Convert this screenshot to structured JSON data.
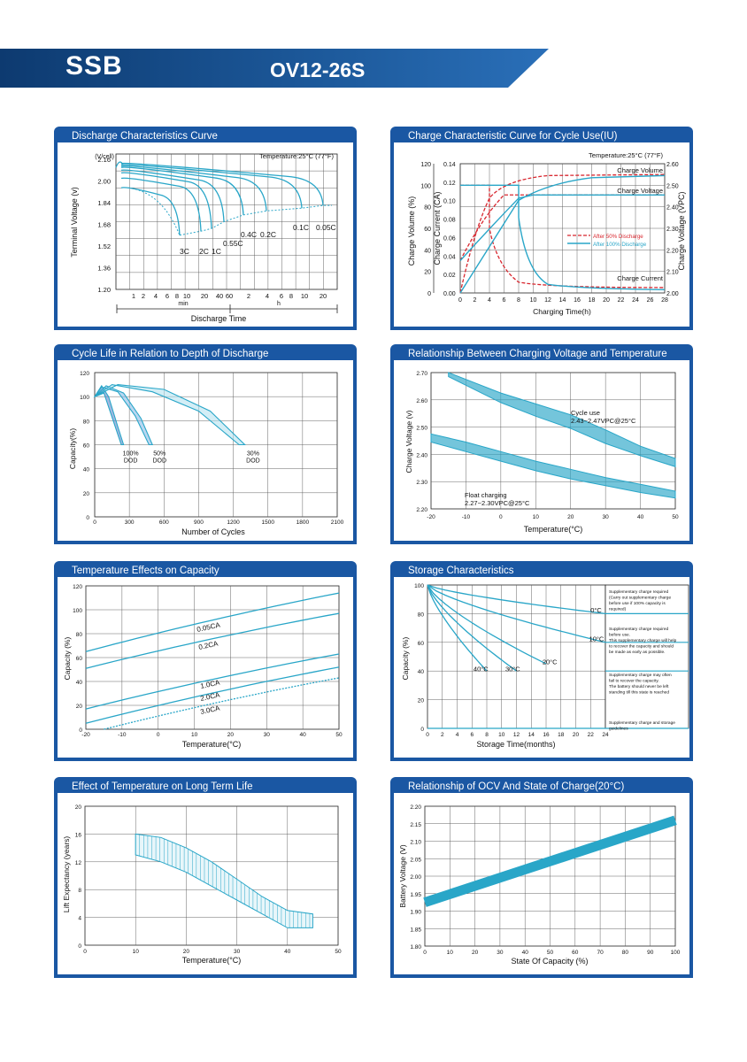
{
  "header": {
    "brand": "SSB",
    "model": "OV12-26S",
    "colors": {
      "banner": "#0f3f7a",
      "banner_light": "#2a6fb8",
      "panel": "#1a57a3",
      "curve": "#29a6c8",
      "red": "#d8262e"
    }
  },
  "panels": [
    {
      "title": "Discharge Characteristics Curve",
      "chart_data": {
        "type": "line",
        "title": "Discharge Characteristics Curve",
        "annotation": "Temperature:25°C (77°F)",
        "y_unit_label": "(V/cell)",
        "ylabel": "Terminal Voltage (v)",
        "xlabel": "Discharge Time",
        "ylim": [
          1.2,
          2.2
        ],
        "yticks": [
          "2.16",
          "2.00",
          "1.84",
          "1.68",
          "1.52",
          "1.36",
          "1.20"
        ],
        "x_ticks_min": [
          "1",
          "2",
          "4",
          "6",
          "8",
          "10",
          "20",
          "40",
          "60"
        ],
        "x_ticks_h": [
          "2",
          "4",
          "6",
          "8",
          "10",
          "20"
        ],
        "x_unit_min": "min",
        "x_unit_h": "h",
        "series": [
          {
            "name": "3C",
            "end_time": "6min",
            "end_v": 1.6
          },
          {
            "name": "2C",
            "end_time": "12min",
            "end_v": 1.63
          },
          {
            "name": "1C",
            "end_time": "30min",
            "end_v": 1.65
          },
          {
            "name": "0.55C",
            "end_time": "60min",
            "end_v": 1.7
          },
          {
            "name": "0.4C",
            "end_time": "2h",
            "end_v": 1.75
          },
          {
            "name": "0.2C",
            "end_time": "5h",
            "end_v": 1.78
          },
          {
            "name": "0.1C",
            "end_time": "10h",
            "end_v": 1.8
          },
          {
            "name": "0.05C",
            "end_time": "20h",
            "end_v": 1.82
          }
        ],
        "labels": [
          "3C",
          "2C",
          "1C",
          "0.55C",
          "0.4C",
          "0.2C",
          "0.1C",
          "0.05C"
        ]
      }
    },
    {
      "title": "Charge Characteristic Curve for Cycle Use(IU)",
      "chart_data": {
        "type": "line",
        "title": "Charge Characteristic Curve for Cycle Use(IU)",
        "annotation": "Temperature:25°C (77°F)",
        "ylabel_volume": "Charge Volume (%)",
        "ylabel_current": "Charge Current (CA)",
        "ylabel_voltage": "Charge Voltage (VPC)",
        "xlabel": "Charging Time(h)",
        "x": [
          0,
          2,
          4,
          6,
          8,
          10,
          12,
          14,
          16,
          18,
          20,
          22,
          24,
          26,
          28
        ],
        "volume_ticks": [
          "0",
          "20",
          "40",
          "60",
          "80",
          "100",
          "120"
        ],
        "current_ticks": [
          "0.00",
          "0.02",
          "0.04",
          "0.06",
          "0.08",
          "0.10",
          "0.12",
          "0.14"
        ],
        "voltage_ticks": [
          "2.00",
          "2.10",
          "2.20",
          "2.30",
          "2.40",
          "2.50",
          "2.60"
        ],
        "curve_labels": [
          "Charge Volume",
          "Charge Voltage",
          "Charge Current"
        ],
        "legend": [
          "After 50% Discharge",
          "After 100% Discharge"
        ]
      }
    },
    {
      "title": "Cycle Life in Relation to Depth of Discharge",
      "chart_data": {
        "type": "area",
        "title": "Cycle Life in Relation to Depth of Discharge",
        "ylabel": "Capacity(%)",
        "xlabel": "Number of Cycles",
        "xticks": [
          "0",
          "300",
          "600",
          "900",
          "1200",
          "1500",
          "1800",
          "2100"
        ],
        "yticks": [
          "0",
          "20",
          "40",
          "60",
          "80",
          "100",
          "120"
        ],
        "series": [
          {
            "name": "100% DOD",
            "end_cycles": 250,
            "end_capacity": 60
          },
          {
            "name": "50% DOD",
            "end_cycles": 500,
            "end_capacity": 60
          },
          {
            "name": "30% DOD",
            "end_cycles": 1300,
            "end_capacity": 60
          }
        ],
        "labels": [
          [
            "100%",
            "DOD"
          ],
          [
            "50%",
            "DOD"
          ],
          [
            "30%",
            "DOD"
          ]
        ]
      }
    },
    {
      "title": "Relationship Between Charging Voltage and Temperature",
      "chart_data": {
        "type": "area",
        "title": "Relationship Between Charging Voltage and Temperature",
        "ylabel": "Charge Voltage (v)",
        "xlabel": "Temperature(°C)",
        "xticks": [
          "-20",
          "-10",
          "0",
          "10",
          "20",
          "30",
          "40",
          "50"
        ],
        "yticks": [
          "2.20",
          "2.30",
          "2.40",
          "2.50",
          "2.60",
          "2.70"
        ],
        "bands": [
          {
            "name": "Cycle use",
            "label2": "2.43~2.47VPC@25°C"
          },
          {
            "name": "Float charging",
            "label2": "2.27~2.30VPC@25°C"
          }
        ],
        "band_labels": [
          "Cycle use",
          "2.43~2.47VPC@25°C",
          "Float charging",
          "2.27~2.30VPC@25°C"
        ]
      }
    },
    {
      "title": "Temperature Effects on Capacity",
      "chart_data": {
        "type": "line",
        "title": "Temperature Effects on Capacity",
        "ylabel": "Capacity (%)",
        "xlabel": "Temperature(°C)",
        "xticks": [
          "-20",
          "-10",
          "0",
          "10",
          "20",
          "30",
          "40",
          "50"
        ],
        "yticks": [
          "0",
          "20",
          "40",
          "60",
          "80",
          "100",
          "120"
        ],
        "series": [
          {
            "name": "0.05CA",
            "x": [
              -20,
              50
            ],
            "y": [
              65,
              114
            ]
          },
          {
            "name": "0.2CA",
            "x": [
              -20,
              50
            ],
            "y": [
              51,
              97
            ]
          },
          {
            "name": "1.0CA",
            "x": [
              -20,
              50
            ],
            "y": [
              17,
              63
            ]
          },
          {
            "name": "2.0CA",
            "x": [
              -20,
              50
            ],
            "y": [
              5,
              52
            ]
          },
          {
            "name": "3.0CA",
            "x": [
              -15,
              50
            ],
            "y": [
              0,
              43
            ]
          }
        ],
        "labels": [
          "0.05CA",
          "0.2CA",
          "1.0CA",
          "2.0CA",
          "3.0CA"
        ]
      }
    },
    {
      "title": "Storage Characteristics",
      "chart_data": {
        "type": "line",
        "title": "Storage Characteristics",
        "ylabel": "Capacity (%)",
        "xlabel": "Storage Time(months)",
        "xticks": [
          "0",
          "2",
          "4",
          "6",
          "8",
          "10",
          "12",
          "14",
          "16",
          "18",
          "20",
          "22",
          "24"
        ],
        "yticks": [
          "0",
          "20",
          "40",
          "60",
          "80",
          "100"
        ],
        "series": [
          {
            "name": "0°C",
            "end_months": 24,
            "end_capacity": 80
          },
          {
            "name": "10°C",
            "end_months": 24,
            "end_capacity": 60
          },
          {
            "name": "20°C",
            "end_months": 16,
            "end_capacity": 45
          },
          {
            "name": "30°C",
            "end_months": 12,
            "end_capacity": 40
          },
          {
            "name": "40°C",
            "end_months": 8,
            "end_capacity": 40
          }
        ],
        "labels": [
          "0°C",
          "10°C",
          "20°C",
          "30°C",
          "40°C"
        ],
        "notes": [
          [
            "Supplementary charge required",
            "(Carry out supplementary charge",
            "before use if 100% capacity is",
            "required)"
          ],
          [
            "Supplementary charge required",
            "before use.",
            "This supplementary charge will help",
            "to recover the capacity and should",
            "be made as early as possible."
          ],
          [
            "Supplementary charge may often",
            "fail to recover the capacity.",
            "The battery should never be left",
            "standing till this state is reached"
          ],
          [
            "Supplementary charge and storage",
            "guidelines"
          ]
        ]
      }
    },
    {
      "title": "Effect of Temperature on Long Term Life",
      "chart_data": {
        "type": "area",
        "title": "Effect of Temperature on Long Term Life",
        "ylabel": "Lift Expectancy (years)",
        "xlabel": "Temperature(°C)",
        "xticks": [
          "0",
          "10",
          "20",
          "30",
          "40",
          "50"
        ],
        "yticks": [
          "0",
          "4",
          "8",
          "12",
          "16",
          "20"
        ],
        "upper": {
          "x": [
            10,
            15,
            20,
            25,
            30,
            35,
            40,
            45
          ],
          "y": [
            16,
            15.5,
            14,
            12,
            9.5,
            7,
            5,
            4.5
          ]
        },
        "lower": {
          "x": [
            10,
            15,
            20,
            25,
            30,
            35,
            40,
            45
          ],
          "y": [
            13,
            12,
            10.5,
            8.5,
            6.5,
            4.5,
            2.5,
            2.5
          ]
        }
      }
    },
    {
      "title": "Relationship of OCV And State of Charge(20°C)",
      "chart_data": {
        "type": "line",
        "title": "Relationship of OCV And State of Charge(20°C)",
        "ylabel": "Battery Voltage (V)",
        "xlabel": "State Of Capacity (%)",
        "xticks": [
          "0",
          "10",
          "20",
          "30",
          "40",
          "50",
          "60",
          "70",
          "80",
          "90",
          "100"
        ],
        "yticks": [
          "1.80",
          "1.85",
          "1.90",
          "1.95",
          "2.00",
          "2.05",
          "2.10",
          "2.15",
          "2.20"
        ],
        "x": [
          0,
          100
        ],
        "y": [
          1.925,
          2.16
        ]
      }
    }
  ]
}
